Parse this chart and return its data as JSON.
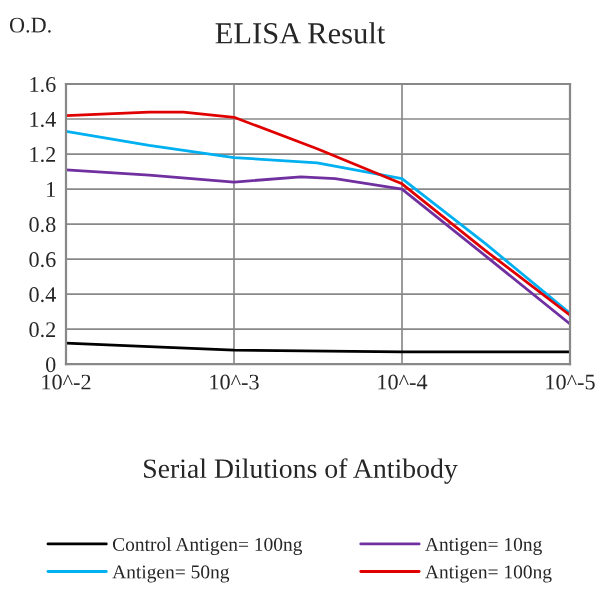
{
  "chart_data": {
    "type": "line",
    "title": "ELISA Result",
    "ylabel": "O.D.",
    "xlabel": "Serial Dilutions of Antibody",
    "log": "x",
    "xlim": [
      0.01,
      1e-05
    ],
    "xticks": [
      {
        "value": 0.01,
        "label": "10^-2"
      },
      {
        "value": 0.001,
        "label": "10^-3"
      },
      {
        "value": 0.0001,
        "label": "10^-4"
      },
      {
        "value": 1e-05,
        "label": "10^-5"
      }
    ],
    "ylim": [
      0,
      1.6
    ],
    "yticks": [
      0,
      0.2,
      0.4,
      0.6,
      0.8,
      1,
      1.2,
      1.4,
      1.6
    ],
    "grid": true,
    "legend": "bottom",
    "marker": "none",
    "line_style": "solid",
    "series": [
      {
        "name": "Control Antigen= 100ng",
        "color": "#000000",
        "x": [
          0.01,
          0.0032,
          0.001,
          0.0001,
          1e-05
        ],
        "values": [
          0.12,
          0.1,
          0.08,
          0.07,
          0.07
        ]
      },
      {
        "name": "Antigen= 10ng",
        "color": "#7030a0",
        "x": [
          0.01,
          0.0032,
          0.001,
          0.0004,
          0.00025,
          0.0001,
          3.2e-05,
          1e-05
        ],
        "values": [
          1.11,
          1.08,
          1.04,
          1.07,
          1.06,
          1.0,
          0.62,
          0.23
        ]
      },
      {
        "name": "Antigen= 50ng",
        "color": "#00b0f0",
        "x": [
          0.01,
          0.0032,
          0.001,
          0.00032,
          0.0001,
          3.2e-05,
          1e-05
        ],
        "values": [
          1.33,
          1.25,
          1.18,
          1.15,
          1.06,
          0.69,
          0.29
        ]
      },
      {
        "name": "Antigen= 100ng",
        "color": "#e00000",
        "x": [
          0.01,
          0.0032,
          0.002,
          0.001,
          0.00032,
          0.0001,
          3.2e-05,
          1e-05
        ],
        "values": [
          1.42,
          1.44,
          1.44,
          1.41,
          1.23,
          1.03,
          0.65,
          0.28
        ]
      }
    ]
  }
}
